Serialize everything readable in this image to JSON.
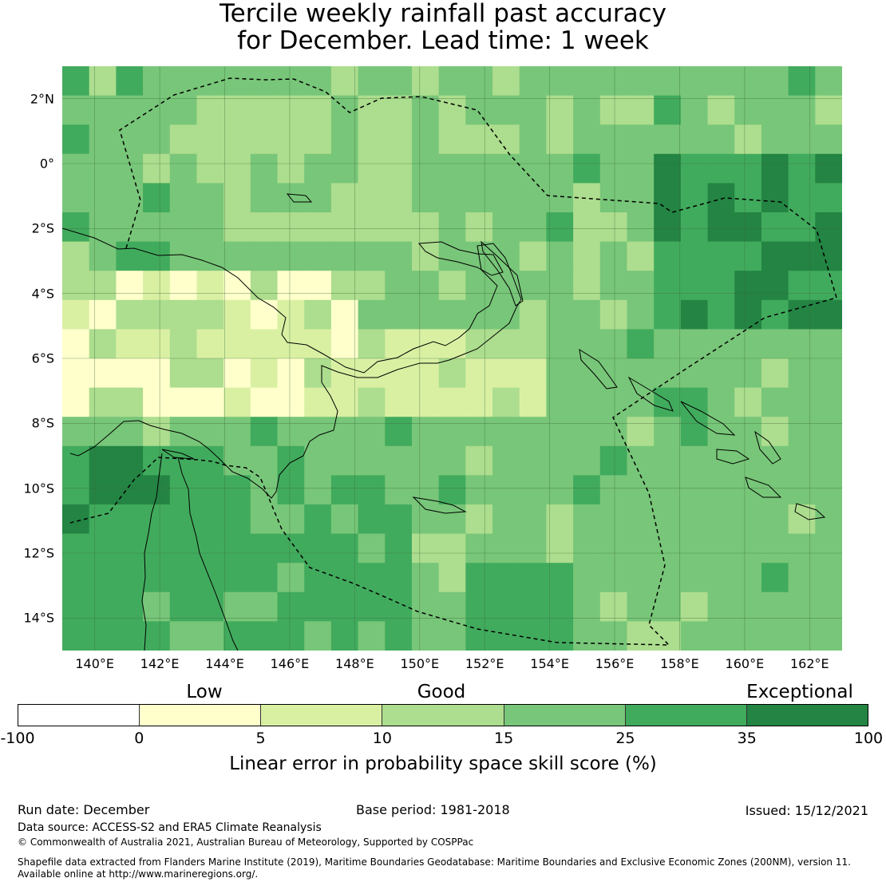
{
  "title": {
    "line1": "Tercile weekly rainfall past accuracy",
    "line2": "for December. Lead time: 1 week"
  },
  "map": {
    "latitude_labels": [
      "2°N",
      "0°",
      "2°S",
      "4°S",
      "6°S",
      "8°S",
      "10°S",
      "12°S",
      "14°S"
    ],
    "longitude_labels": [
      "140°E",
      "142°E",
      "144°E",
      "146°E",
      "148°E",
      "150°E",
      "152°E",
      "154°E",
      "156°E",
      "158°E",
      "160°E",
      "162°E"
    ],
    "extent": {
      "lon_min": 139,
      "lon_max": 163,
      "lat_min": -15,
      "lat_max": 3
    },
    "colors": {
      "very_low": "#ffffff",
      "low_0_5": "#ffffcc",
      "low_5_10": "#d9f0a3",
      "good_10_15": "#addd8e",
      "good_15_25": "#78c679",
      "high_25_35": "#41ab5d",
      "exceptional_35_100": "#238443"
    }
  },
  "colorbar": {
    "categories": [
      "Low",
      "Good",
      "Exceptional"
    ],
    "ticks": [
      "-100",
      "0",
      "5",
      "10",
      "15",
      "25",
      "35",
      "100"
    ],
    "colors": [
      "#ffffff",
      "#ffffcc",
      "#d9f0a3",
      "#addd8e",
      "#78c679",
      "#41ab5d",
      "#238443"
    ],
    "label": "Linear error in probability space skill score (%)"
  },
  "footer": {
    "run_date": "Run date: December",
    "base_period": "Base period: 1981-2018",
    "issued": "Issued: 15/12/2021",
    "data_source": "Data source: ACCESS-S2 and ERA5 Climate Reanalysis",
    "copyright": "© Commonwealth of Australia 2021, Australian Bureau of Meteorology, Supported by COSPPac",
    "shapefile_line1": "Shapefile data extracted from Flanders Marine Institute (2019), Maritime Boundaries Geodatabase: Maritime Boundaries and Exclusive Economic Zones (200NM), version 11.",
    "shapefile_line2": "Available online at http://www.marineregions.org/."
  }
}
